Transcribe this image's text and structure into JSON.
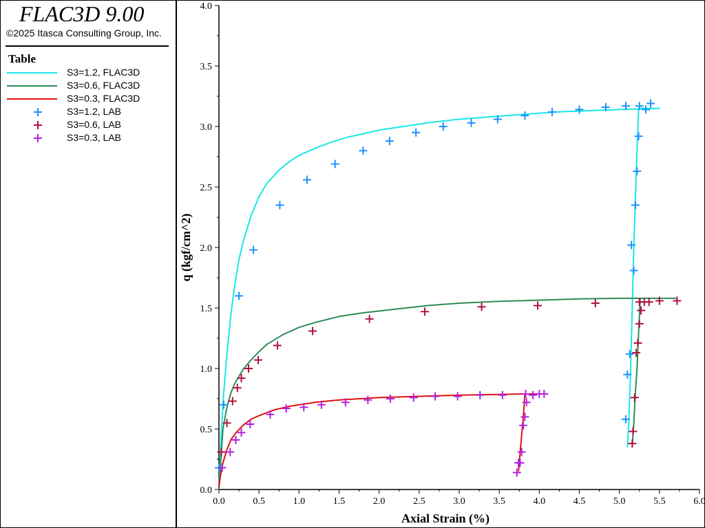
{
  "app": {
    "title": "FLAC3D 9.00",
    "copyright": "©2025 Itasca Consulting Group, Inc."
  },
  "legend": {
    "title": "Table",
    "entries": [
      {
        "label": "S3=1.2, FLAC3D",
        "type": "line",
        "color": "#19e6e6"
      },
      {
        "label": "S3=0.6, FLAC3D",
        "type": "line",
        "color": "#2e8b57"
      },
      {
        "label": "S3=0.3, FLAC3D",
        "type": "line",
        "color": "#e01010"
      },
      {
        "label": "S3=1.2, LAB",
        "type": "marker",
        "color": "#1e90ff"
      },
      {
        "label": "S3=0.6, LAB",
        "type": "marker",
        "color": "#b0103c"
      },
      {
        "label": "S3=0.3, LAB",
        "type": "marker",
        "color": "#b020e0"
      }
    ]
  },
  "chart_data": {
    "type": "line",
    "xlabel": "Axial Strain (%)",
    "ylabel": "q (kgf/cm^2)",
    "xlim": [
      0,
      6
    ],
    "ylim": [
      0,
      4
    ],
    "xticks": [
      "0.0",
      "0.5",
      "1.0",
      "1.5",
      "2.0",
      "2.5",
      "3.0",
      "3.5",
      "4.0",
      "4.5",
      "5.0",
      "5.5",
      "6.0"
    ],
    "yticks": [
      "0.0",
      "0.5",
      "1.0",
      "1.5",
      "2.0",
      "2.5",
      "3.0",
      "3.5",
      "4.0"
    ],
    "grid": false,
    "series": [
      {
        "name": "S3=1.2, FLAC3D",
        "kind": "line",
        "color": "#19e6e6",
        "x": [
          0.0,
          0.03,
          0.06,
          0.1,
          0.15,
          0.2,
          0.25,
          0.3,
          0.4,
          0.5,
          0.6,
          0.75,
          0.9,
          1.0,
          1.2,
          1.4,
          1.6,
          1.8,
          2.0,
          2.3,
          2.6,
          3.0,
          3.4,
          3.8,
          4.2,
          4.6,
          5.0,
          5.2,
          5.5,
          5.24,
          5.22,
          5.2,
          5.18,
          5.16,
          5.14,
          5.12,
          5.1
        ],
        "y": [
          0.0,
          0.48,
          0.8,
          1.12,
          1.45,
          1.7,
          1.9,
          2.04,
          2.26,
          2.42,
          2.53,
          2.64,
          2.72,
          2.76,
          2.82,
          2.87,
          2.91,
          2.94,
          2.97,
          3.0,
          3.03,
          3.06,
          3.08,
          3.1,
          3.12,
          3.13,
          3.14,
          3.145,
          3.15,
          3.15,
          2.8,
          2.4,
          2.0,
          1.5,
          1.0,
          0.6,
          0.35
        ]
      },
      {
        "name": "S3=0.6, FLAC3D",
        "kind": "line",
        "color": "#2e8b57",
        "x": [
          0.0,
          0.05,
          0.1,
          0.15,
          0.2,
          0.3,
          0.4,
          0.5,
          0.6,
          0.8,
          1.0,
          1.2,
          1.5,
          1.8,
          2.2,
          2.6,
          3.0,
          3.5,
          4.0,
          4.5,
          5.0,
          5.3,
          5.7,
          5.26,
          5.24,
          5.22,
          5.2,
          5.18,
          5.16
        ],
        "y": [
          0.0,
          0.5,
          0.68,
          0.8,
          0.88,
          0.99,
          1.07,
          1.14,
          1.2,
          1.28,
          1.34,
          1.38,
          1.43,
          1.46,
          1.49,
          1.52,
          1.54,
          1.555,
          1.565,
          1.575,
          1.58,
          1.58,
          1.58,
          1.58,
          1.3,
          1.0,
          0.8,
          0.55,
          0.35
        ]
      },
      {
        "name": "S3=0.3, FLAC3D",
        "kind": "line",
        "color": "#e01010",
        "x": [
          0.0,
          0.02,
          0.05,
          0.1,
          0.15,
          0.2,
          0.3,
          0.4,
          0.5,
          0.7,
          0.9,
          1.2,
          1.5,
          2.0,
          2.5,
          3.0,
          3.5,
          3.8,
          4.1,
          3.82,
          3.8,
          3.78,
          3.76,
          3.74
        ],
        "y": [
          0.02,
          0.12,
          0.22,
          0.33,
          0.41,
          0.46,
          0.53,
          0.58,
          0.61,
          0.66,
          0.69,
          0.72,
          0.74,
          0.76,
          0.77,
          0.78,
          0.785,
          0.79,
          0.79,
          0.79,
          0.6,
          0.45,
          0.3,
          0.15
        ]
      },
      {
        "name": "S3=1.2, LAB",
        "kind": "marker",
        "color": "#1e90ff",
        "x": [
          0.0,
          0.06,
          0.25,
          0.43,
          0.76,
          1.1,
          1.45,
          1.8,
          2.13,
          2.46,
          2.8,
          3.15,
          3.48,
          3.82,
          4.16,
          4.5,
          4.83,
          5.08,
          5.25,
          5.39,
          5.33,
          5.24,
          5.22,
          5.2,
          5.18,
          5.15,
          5.13,
          5.1,
          5.08
        ],
        "y": [
          0.18,
          0.7,
          1.6,
          1.98,
          2.35,
          2.56,
          2.69,
          2.8,
          2.88,
          2.95,
          3.0,
          3.03,
          3.06,
          3.09,
          3.12,
          3.14,
          3.16,
          3.17,
          3.17,
          3.19,
          3.14,
          2.92,
          2.63,
          2.35,
          1.81,
          2.02,
          1.12,
          0.95,
          0.58
        ]
      },
      {
        "name": "S3=0.6, LAB",
        "kind": "marker",
        "color": "#b0103c",
        "x": [
          0.03,
          0.1,
          0.17,
          0.23,
          0.28,
          0.37,
          0.49,
          0.73,
          1.17,
          1.88,
          2.57,
          3.28,
          3.98,
          4.7,
          5.25,
          5.31,
          5.37,
          5.5,
          5.72,
          5.27,
          5.25,
          5.23,
          5.21,
          5.19,
          5.17,
          5.16
        ],
        "y": [
          0.31,
          0.55,
          0.73,
          0.84,
          0.92,
          1.0,
          1.07,
          1.19,
          1.31,
          1.41,
          1.47,
          1.51,
          1.52,
          1.54,
          1.55,
          1.55,
          1.55,
          1.56,
          1.56,
          1.48,
          1.37,
          1.21,
          1.13,
          0.76,
          0.48,
          0.38
        ]
      },
      {
        "name": "S3=0.3, LAB",
        "kind": "marker",
        "color": "#b020e0",
        "x": [
          0.04,
          0.14,
          0.21,
          0.28,
          0.39,
          0.64,
          0.84,
          1.06,
          1.28,
          1.58,
          1.86,
          2.14,
          2.43,
          2.7,
          2.98,
          3.26,
          3.54,
          3.83,
          3.92,
          4.0,
          4.06,
          3.84,
          3.82,
          3.8,
          3.78,
          3.76,
          3.74,
          3.72
        ],
        "y": [
          0.18,
          0.31,
          0.41,
          0.47,
          0.54,
          0.62,
          0.67,
          0.68,
          0.7,
          0.72,
          0.74,
          0.75,
          0.76,
          0.77,
          0.77,
          0.78,
          0.78,
          0.79,
          0.78,
          0.79,
          0.79,
          0.72,
          0.6,
          0.53,
          0.31,
          0.22,
          0.22,
          0.14
        ]
      }
    ]
  }
}
